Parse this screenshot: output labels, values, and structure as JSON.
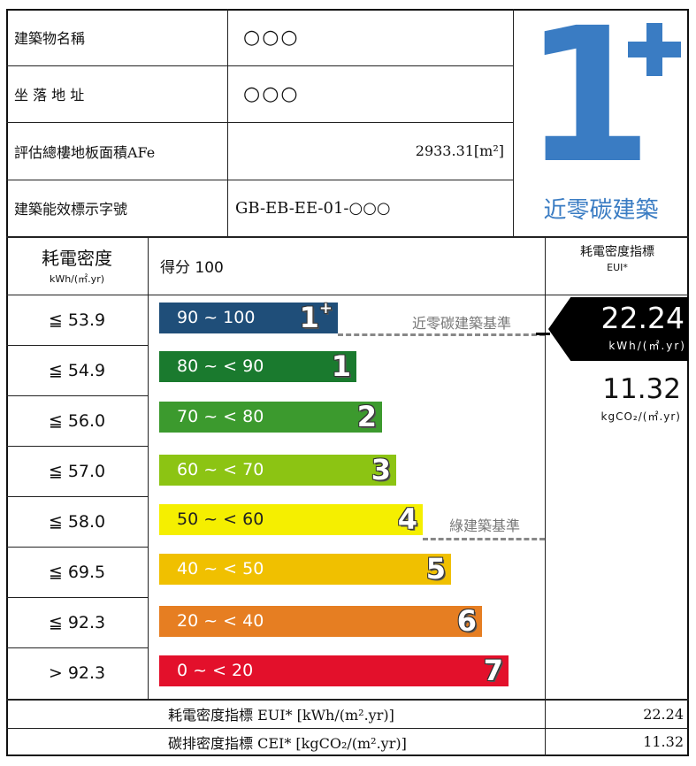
{
  "info": {
    "name_label": "建築物名稱",
    "name_value": "○○○",
    "address_label": "坐 落 地 址",
    "address_value": "○○○",
    "area_label": "評估總樓地板面積AFe",
    "area_value": "2933.31[m²]",
    "mark_label": "建築能效標示字號",
    "mark_value": "GB-EB-EE-01-○○○"
  },
  "badge": {
    "grade": "1",
    "plus": "+",
    "caption": "近零碳建築",
    "color": "#3a7cc3"
  },
  "table_header": {
    "density_label": "耗電密度",
    "density_unit": "kWh/(㎡.yr)",
    "score": "得分 100",
    "eui_label": "耗電密度指標",
    "eui_sub": "EUI*"
  },
  "bands": [
    {
      "threshold": "≦ 53.9",
      "range": "90 ~ 100",
      "grade": "1",
      "sup": "+",
      "color": "#1f4e79"
    },
    {
      "threshold": "≦ 54.9",
      "range": "80 ~ < 90",
      "grade": "1",
      "sup": "",
      "color": "#1a7a2e"
    },
    {
      "threshold": "≦ 56.0",
      "range": "70 ~ < 80",
      "grade": "2",
      "sup": "",
      "color": "#3c9a2e"
    },
    {
      "threshold": "≦ 57.0",
      "range": "60 ~ < 70",
      "grade": "3",
      "sup": "",
      "color": "#8cc413"
    },
    {
      "threshold": "≦ 58.0",
      "range": "50 ~ < 60",
      "grade": "4",
      "sup": "",
      "color": "#f5ef00"
    },
    {
      "threshold": "≦ 69.5",
      "range": "40 ~ < 50",
      "grade": "5",
      "sup": "",
      "color": "#f0c000"
    },
    {
      "threshold": "≦ 92.3",
      "range": "20 ~ < 40",
      "grade": "6",
      "sup": "",
      "color": "#e67e22"
    },
    {
      "threshold": "> 92.3",
      "range": "0 ~ < 20",
      "grade": "7",
      "sup": "",
      "color": "#e3102b"
    }
  ],
  "references": {
    "near_zero": "近零碳建築基準",
    "green": "綠建築基準"
  },
  "indicator": {
    "eui_value": "22.24",
    "eui_unit": "kWh/(㎡.yr)",
    "cei_value": "11.32",
    "cei_unit": "kgCO₂/(㎡.yr)"
  },
  "footer": {
    "eui_label": "耗電密度指標  EUI*  [kWh/(m².yr)]",
    "eui_value": "22.24",
    "cei_label": "碳排密度指標  CEI*  [kgCO₂/(m².yr)]",
    "cei_value": "11.32"
  }
}
